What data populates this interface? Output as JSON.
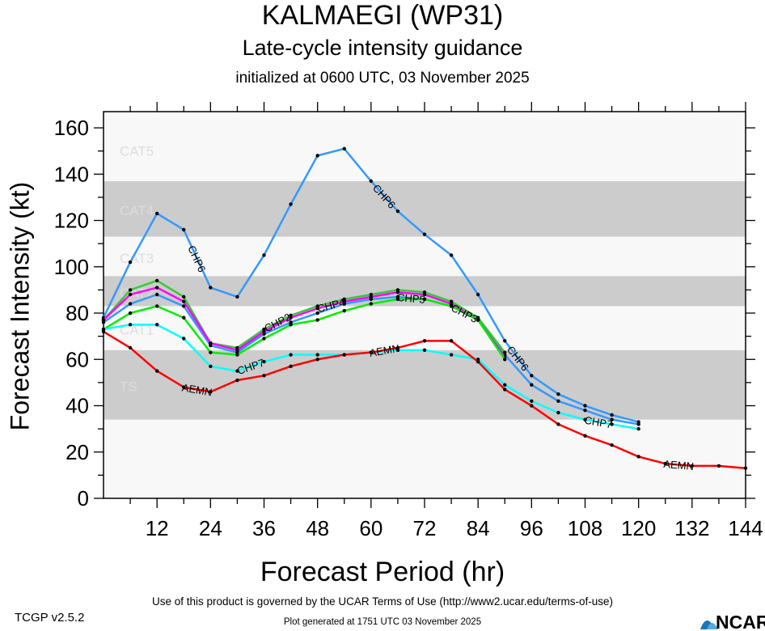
{
  "header": {
    "title": "KALMAEGI (WP31)",
    "subtitle": "Late-cycle intensity guidance",
    "initialized": "initialized at 0600 UTC, 03 November 2025"
  },
  "footer": {
    "version": "TCGP v2.5.2",
    "terms": "Use of this product is governed by the UCAR Terms of Use (http://www2.ucar.edu/terms-of-use)",
    "generated": "Plot generated at 1751 UTC   03 November 2025",
    "logo_text": "NCAR"
  },
  "chart_data": {
    "type": "line",
    "title": "KALMAEGI (WP31)",
    "xlabel": "Forecast Period (hr)",
    "ylabel": "Forecast Intensity (kt)",
    "xlim": [
      0,
      144
    ],
    "ylim": [
      0,
      167
    ],
    "xticks": [
      12,
      24,
      36,
      48,
      60,
      72,
      84,
      96,
      108,
      120,
      132,
      144
    ],
    "yticks": [
      0,
      20,
      40,
      60,
      80,
      100,
      120,
      140,
      160
    ],
    "grid": false,
    "bands": [
      {
        "label": "TS",
        "min": 34,
        "max": 64,
        "color": "#cccccc"
      },
      {
        "label": "CAT1",
        "min": 64,
        "max": 83,
        "color": "#f8f8f8"
      },
      {
        "label": "CAT2",
        "min": 83,
        "max": 96,
        "color": "#cccccc"
      },
      {
        "label": "CAT3",
        "min": 96,
        "max": 113,
        "color": "#f8f8f8"
      },
      {
        "label": "CAT4",
        "min": 113,
        "max": 137,
        "color": "#cccccc"
      },
      {
        "label": "CAT5",
        "min": 137,
        "max": 167,
        "color": "#f8f8f8"
      }
    ],
    "background_color": "#f8f8f8",
    "series": [
      {
        "name": "CHP6",
        "color": "#3399ff",
        "x": [
          0,
          6,
          12,
          18,
          24,
          30,
          36,
          42,
          48,
          54,
          60,
          66,
          72,
          78,
          84,
          90,
          96,
          102,
          108,
          114,
          120
        ],
        "y": [
          78,
          102,
          123,
          116,
          91,
          87,
          105,
          127,
          148,
          151,
          137,
          124,
          114,
          105,
          88,
          68,
          53,
          45,
          40,
          36,
          33
        ]
      },
      {
        "name": "CHP5",
        "color": "#3399ff",
        "x": [
          0,
          6,
          12,
          18,
          24,
          30,
          36,
          42,
          48,
          54,
          60,
          66,
          72,
          78,
          84,
          90,
          96,
          102,
          108,
          114,
          120
        ],
        "y": [
          76,
          84,
          88,
          83,
          66,
          63,
          71,
          76,
          80,
          84,
          86,
          87,
          86,
          83,
          77,
          62,
          49,
          42,
          38,
          34,
          32
        ]
      },
      {
        "name": "CHP2",
        "color": "#33cc33",
        "x": [
          0,
          6,
          12,
          18,
          24,
          30,
          36,
          42,
          48,
          54,
          60,
          66,
          72,
          78,
          84,
          90
        ],
        "y": [
          77,
          90,
          94,
          87,
          67,
          65,
          73,
          79,
          83,
          86,
          88,
          90,
          89,
          85,
          78,
          63
        ]
      },
      {
        "name": "CHP4",
        "color": "#ff00ff",
        "x": [
          0,
          6,
          12,
          18,
          24,
          30,
          36,
          42,
          48,
          54,
          60,
          66,
          72,
          78,
          84,
          90
        ],
        "y": [
          77,
          88,
          91,
          85,
          67,
          64,
          72,
          78,
          82,
          85,
          87,
          89,
          88,
          84,
          77,
          61
        ]
      },
      {
        "name": "CHP3",
        "color": "#00ee00",
        "x": [
          0,
          6,
          12,
          18,
          24,
          30,
          36,
          42,
          48,
          54,
          60,
          66,
          72,
          78,
          84,
          90
        ],
        "y": [
          73,
          80,
          83,
          78,
          63,
          62,
          69,
          75,
          77,
          81,
          84,
          86,
          86,
          83,
          77,
          60
        ]
      },
      {
        "name": "CHP7",
        "color": "#00ffff",
        "x": [
          0,
          6,
          12,
          18,
          24,
          30,
          36,
          42,
          48,
          54,
          60,
          66,
          72,
          78,
          84,
          90,
          96,
          102,
          108,
          114,
          120
        ],
        "y": [
          73,
          75,
          75,
          69,
          57,
          55,
          59,
          62,
          62,
          62,
          63,
          64,
          64,
          62,
          60,
          49,
          42,
          37,
          34,
          32,
          30
        ]
      },
      {
        "name": "AEMN",
        "color": "#ff0000",
        "x": [
          0,
          6,
          12,
          18,
          24,
          30,
          36,
          42,
          48,
          54,
          60,
          66,
          72,
          78,
          84,
          90,
          96,
          102,
          108,
          114,
          120,
          126,
          132,
          138,
          144
        ],
        "y": [
          72,
          65,
          55,
          48,
          46,
          51,
          53,
          57,
          60,
          62,
          63,
          65,
          68,
          68,
          59,
          47,
          40,
          32,
          27,
          23,
          18,
          15,
          14,
          14,
          13
        ]
      }
    ]
  }
}
